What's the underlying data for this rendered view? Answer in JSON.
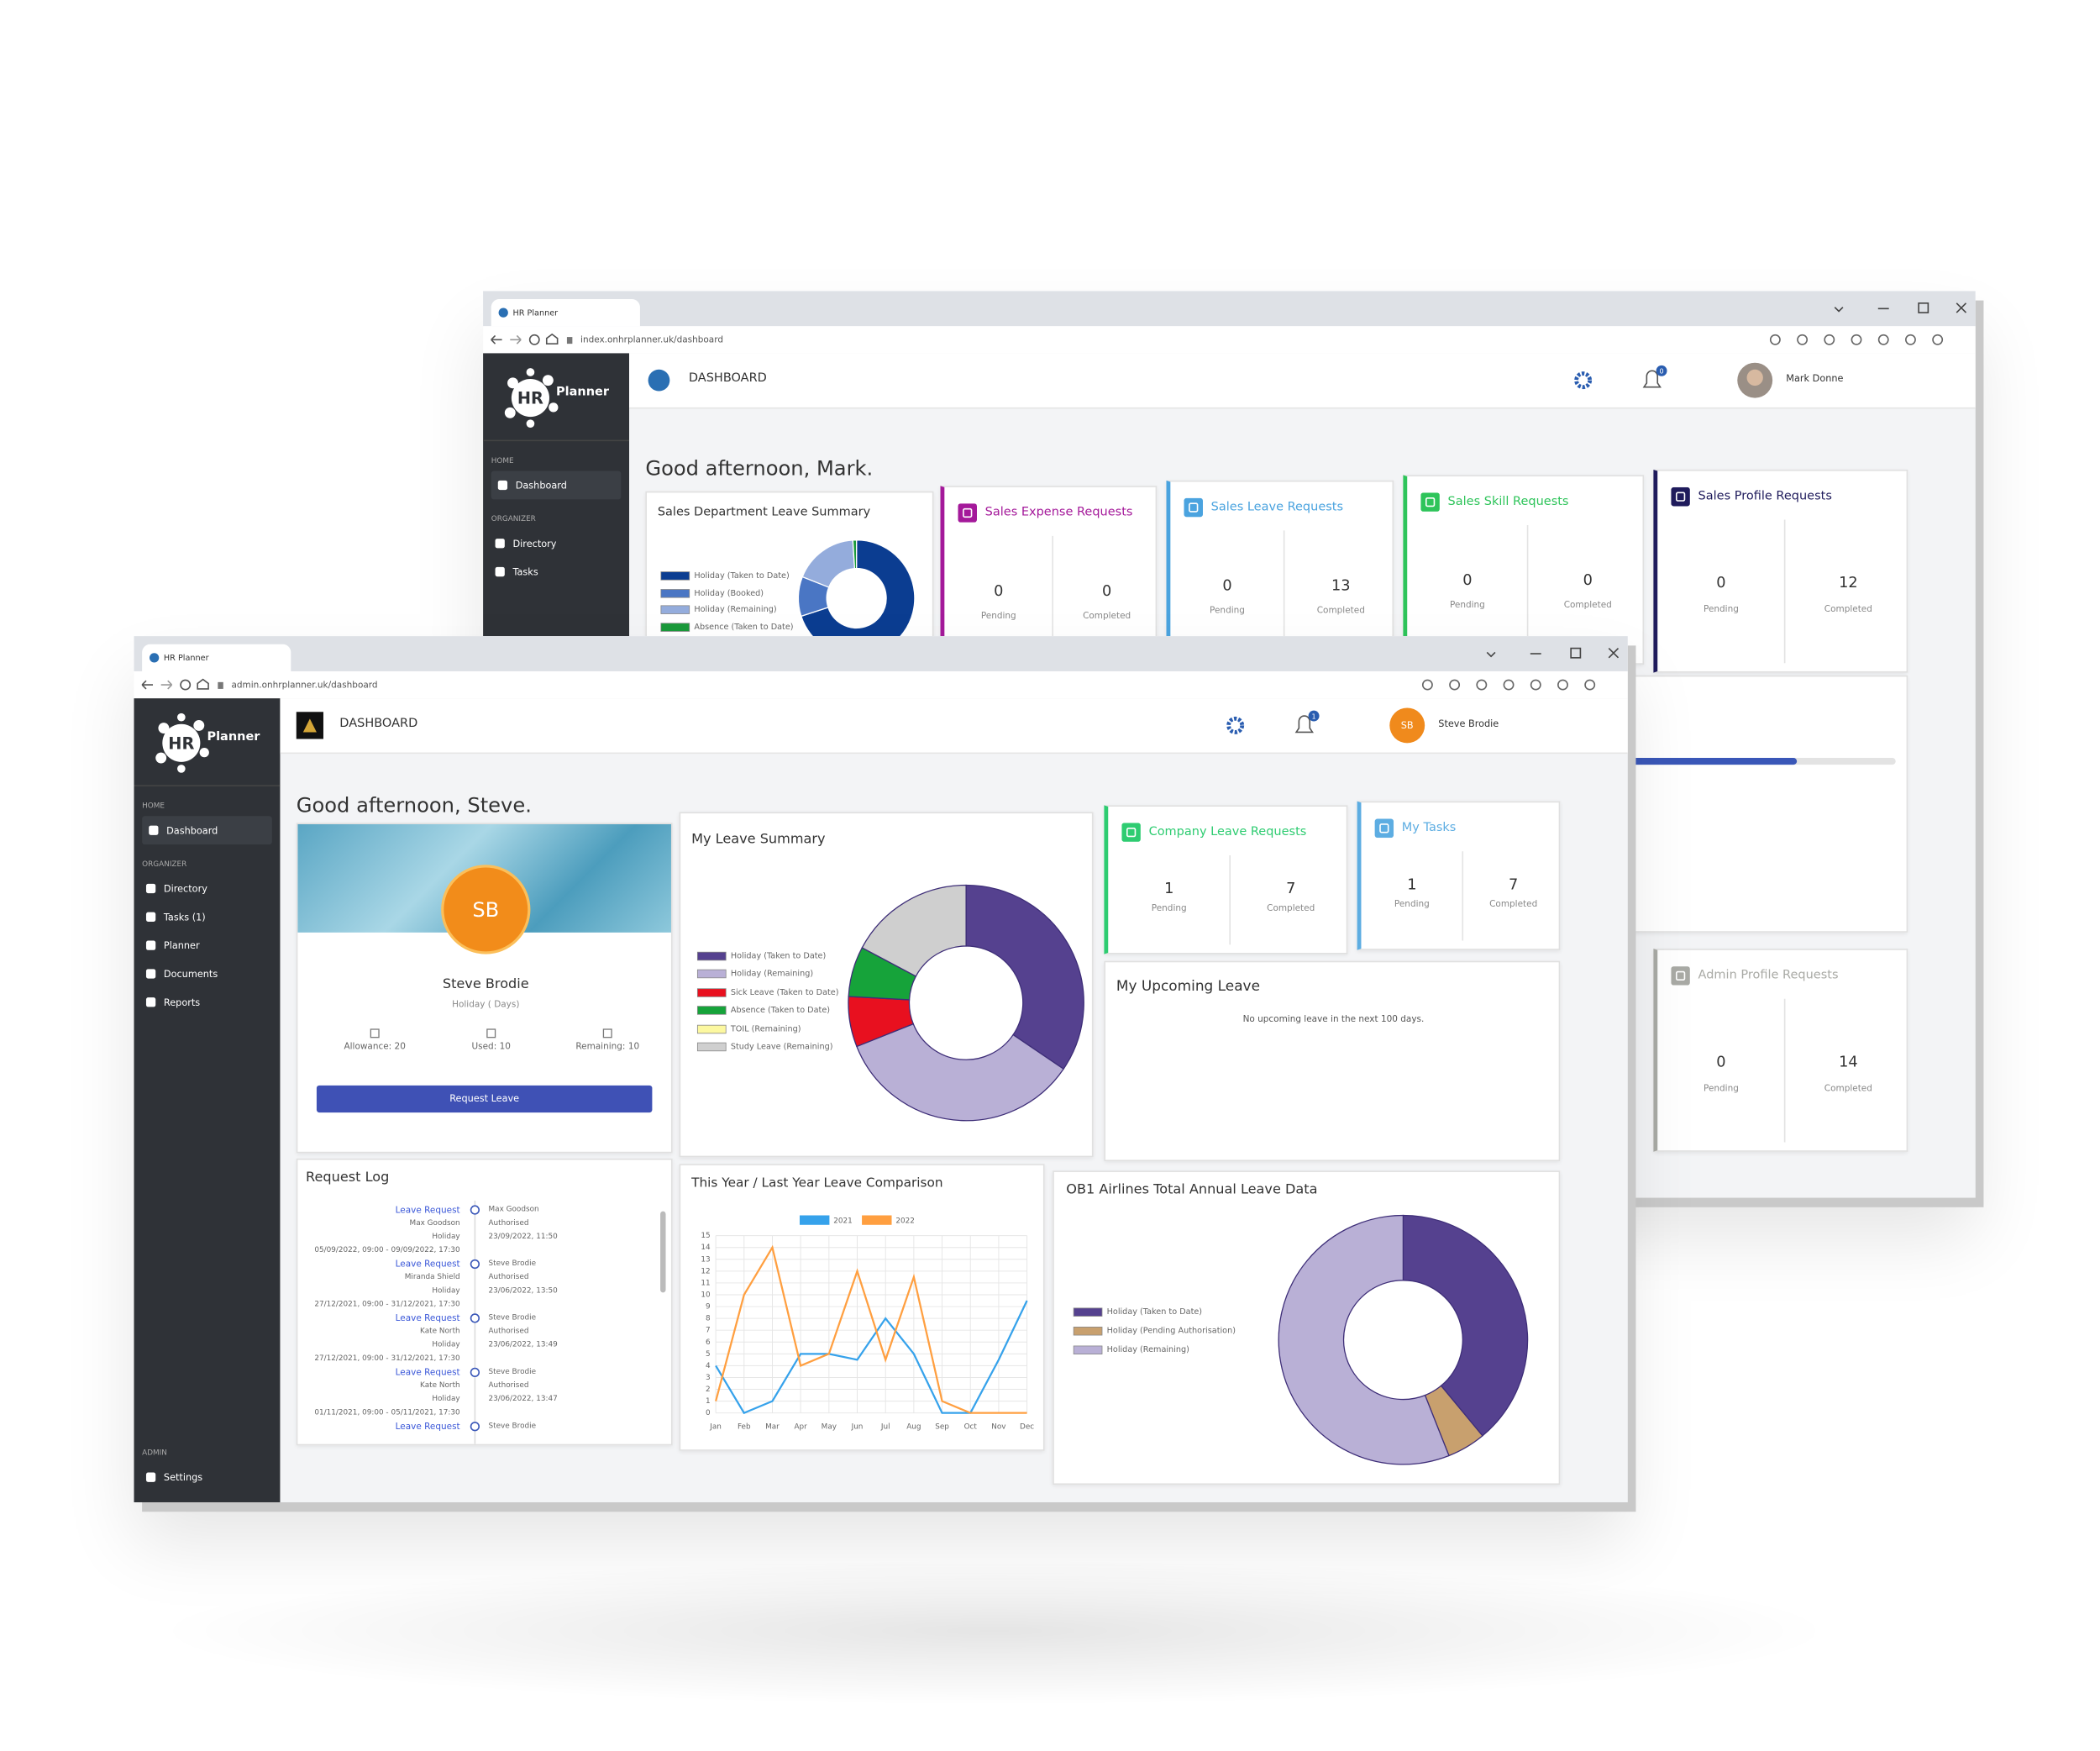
{
  "back_window": {
    "tab_title": "HR Planner",
    "url": "index.onhrplanner.uk/dashboard",
    "logo": {
      "mark": "HR",
      "name": "Planner"
    },
    "sidebar": {
      "sections": [
        {
          "label": "HOME",
          "items": [
            "Dashboard"
          ]
        },
        {
          "label": "ORGANIZER",
          "items": [
            "Directory",
            "Tasks"
          ]
        }
      ]
    },
    "page_title": "DASHBOARD",
    "notification_count": 0,
    "user_name": "Mark Donne",
    "greeting": "Good afternoon, Mark.",
    "leave_summary": {
      "type": "donut",
      "title": "Sales Department Leave Summary",
      "categories": [
        "Holiday (Taken to Date)",
        "Holiday (Booked)",
        "Holiday (Remaining)",
        "Absence (Taken to Date)"
      ],
      "values": [
        70,
        11,
        18,
        1
      ],
      "colors": [
        "#0b3d91",
        "#4a76c4",
        "#94acdc",
        "#1a9a3a"
      ]
    },
    "pending_label": "Pending",
    "completed_label": "Completed",
    "request_cards": [
      {
        "title": "Sales Expense Requests",
        "color": "#a4199a",
        "pending": 0,
        "completed": 0
      },
      {
        "title": "Sales Leave Requests",
        "color": "#4aa3df",
        "pending": 0,
        "completed": 13
      },
      {
        "title": "Sales Skill Requests",
        "color": "#2ec45a",
        "pending": 0,
        "completed": 0
      },
      {
        "title": "Sales Profile Requests",
        "color": "#1f1b5c",
        "pending": 0,
        "completed": 12
      },
      {
        "title": "Admin Profile Requests",
        "color": "#a9aaa5",
        "pending": 0,
        "completed": 14
      }
    ]
  },
  "front_window": {
    "tab_title": "HR Planner",
    "url": "admin.onhrplanner.uk/dashboard",
    "logo": {
      "mark": "HR",
      "name": "Planner"
    },
    "sidebar": {
      "sections": [
        {
          "label": "HOME",
          "items": [
            "Dashboard"
          ]
        },
        {
          "label": "ORGANIZER",
          "items": [
            "Directory",
            "Tasks (1)",
            "Planner",
            "Documents",
            "Reports"
          ]
        },
        {
          "label": "ADMIN",
          "items": [
            "Settings"
          ]
        }
      ]
    },
    "page_title": "DASHBOARD",
    "notification_count": 1,
    "user_name": "Steve Brodie",
    "greeting": "Good afternoon, Steve.",
    "profile": {
      "initials": "SB",
      "name": "Steve Brodie",
      "subtitle": "Holiday ( Days)",
      "stats": [
        {
          "label": "Allowance:",
          "value": 20
        },
        {
          "label": "Used:",
          "value": 10
        },
        {
          "label": "Remaining:",
          "value": 10
        }
      ],
      "button": "Request Leave"
    },
    "leave_summary": {
      "type": "donut",
      "title": "My Leave Summary",
      "categories": [
        "Holiday (Taken to Date)",
        "Holiday (Remaining)",
        "Sick Leave (Taken to Date)",
        "Absence (Taken to Date)",
        "TOIL (Remaining)",
        "Study Leave (Remaining)"
      ],
      "values": [
        10,
        10,
        2,
        2,
        0,
        5
      ],
      "colors": [
        "#55418f",
        "#b9b0d6",
        "#e8101f",
        "#16a33a",
        "#fcf8a0",
        "#cfcfcf"
      ]
    },
    "pending_label": "Pending",
    "completed_label": "Completed",
    "request_cards": [
      {
        "title": "Company Leave Requests",
        "color": "#2ecc71",
        "pending": 1,
        "completed": 7
      },
      {
        "title": "My Tasks",
        "color": "#5dade2",
        "pending": 1,
        "completed": 7
      }
    ],
    "upcoming_leave": {
      "title": "My Upcoming Leave",
      "message": "No upcoming leave in the next 100 days."
    },
    "request_log": {
      "title": "Request Log",
      "entries": [
        {
          "type": "Leave Request",
          "employee": "Max Goodson",
          "leave_type": "Holiday",
          "period": "05/09/2022, 09:00 - 09/09/2022, 17:30",
          "actor": "Max Goodson",
          "status": "Authorised",
          "timestamp": "23/09/2022, 11:50"
        },
        {
          "type": "Leave Request",
          "employee": "Miranda Shield",
          "leave_type": "Holiday",
          "period": "27/12/2021, 09:00 - 31/12/2021, 17:30",
          "actor": "Steve Brodie",
          "status": "Authorised",
          "timestamp": "23/06/2022, 13:50"
        },
        {
          "type": "Leave Request",
          "employee": "Kate North",
          "leave_type": "Holiday",
          "period": "27/12/2021, 09:00 - 31/12/2021, 17:30",
          "actor": "Steve Brodie",
          "status": "Authorised",
          "timestamp": "23/06/2022, 13:49"
        },
        {
          "type": "Leave Request",
          "employee": "Kate North",
          "leave_type": "Holiday",
          "period": "01/11/2021, 09:00 - 05/11/2021, 17:30",
          "actor": "Steve Brodie",
          "status": "Authorised",
          "timestamp": "23/06/2022, 13:47"
        },
        {
          "type": "Leave Request",
          "actor": "Steve Brodie"
        }
      ]
    },
    "comparison_chart": {
      "type": "line",
      "title": "This Year / Last Year Leave Comparison",
      "categories": [
        "Jan",
        "Feb",
        "Mar",
        "Apr",
        "May",
        "Jun",
        "Jul",
        "Aug",
        "Sep",
        "Oct",
        "Nov",
        "Dec"
      ],
      "series": [
        {
          "name": "2021",
          "color": "#36a2eb",
          "values": [
            4,
            0,
            1,
            5,
            5,
            4.5,
            8,
            5,
            0,
            0,
            4.5,
            9.5
          ]
        },
        {
          "name": "2022",
          "color": "#ff9f40",
          "values": [
            1,
            10,
            14,
            4,
            5,
            12,
            4.5,
            11.5,
            1,
            0,
            0,
            0
          ]
        }
      ],
      "ylim": [
        0,
        15
      ],
      "yticks": [
        0,
        1,
        2,
        3,
        4,
        5,
        6,
        7,
        8,
        9,
        10,
        11,
        12,
        13,
        14,
        15
      ],
      "grid": true
    },
    "annual_leave": {
      "type": "donut",
      "title": "OB1 Airlines Total Annual Leave Data",
      "categories": [
        "Holiday (Taken to Date)",
        "Holiday (Pending Authorisation)",
        "Holiday (Remaining)"
      ],
      "values": [
        39,
        5,
        56
      ],
      "colors": [
        "#55418f",
        "#c8a06e",
        "#b9b0d6"
      ]
    }
  }
}
